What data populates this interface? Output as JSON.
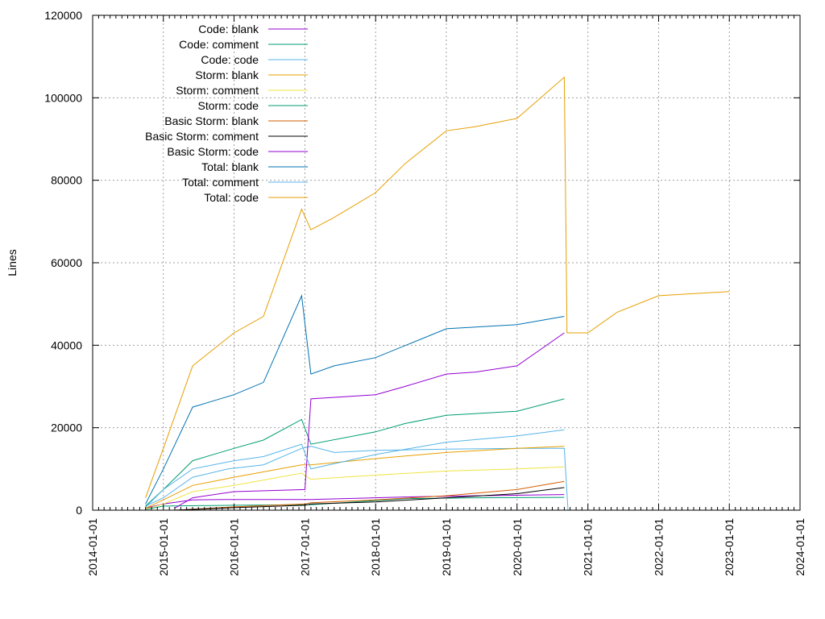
{
  "chart_data": {
    "type": "line",
    "xlabel": "",
    "ylabel": "Lines",
    "ylim": [
      0,
      120000
    ],
    "xlim": [
      "2014-01-01",
      "2024-01-01"
    ],
    "grid": true,
    "legend_position": "top-left",
    "y_ticks": [
      0,
      20000,
      40000,
      60000,
      80000,
      100000,
      120000
    ],
    "x_ticks": [
      "2014-01-01",
      "2015-01-01",
      "2016-01-01",
      "2017-01-01",
      "2018-01-01",
      "2019-01-01",
      "2020-01-01",
      "2021-01-01",
      "2022-01-01",
      "2023-01-01",
      "2024-01-01"
    ],
    "series": [
      {
        "name": "Code: blank",
        "color": "#9400d3",
        "points": [
          [
            "2014-10-01",
            500
          ],
          [
            "2015-01-01",
            1500
          ],
          [
            "2015-06-01",
            2500
          ],
          [
            "2015-12-01",
            2600
          ],
          [
            "2016-06-01",
            2600
          ],
          [
            "2017-01-01",
            2600
          ],
          [
            "2017-02-01",
            2600
          ],
          [
            "2018-06-01",
            3200
          ],
          [
            "2019-06-01",
            3500
          ],
          [
            "2020-09-01",
            3800
          ]
        ]
      },
      {
        "name": "Code: comment",
        "color": "#009e73",
        "points": [
          [
            "2014-10-01",
            200
          ],
          [
            "2015-01-01",
            1000
          ],
          [
            "2016-01-01",
            1200
          ],
          [
            "2017-01-01",
            1300
          ],
          [
            "2017-02-01",
            1300
          ],
          [
            "2018-06-01",
            2800
          ],
          [
            "2019-06-01",
            3000
          ],
          [
            "2020-09-01",
            3100
          ]
        ]
      },
      {
        "name": "Code: code",
        "color": "#56b4e9",
        "points": [
          [
            "2014-10-01",
            1000
          ],
          [
            "2015-01-01",
            3000
          ],
          [
            "2015-06-01",
            8000
          ],
          [
            "2015-12-01",
            10000
          ],
          [
            "2016-06-01",
            11000
          ],
          [
            "2016-12-15",
            15000
          ],
          [
            "2017-02-01",
            15500
          ],
          [
            "2017-06-01",
            14000
          ],
          [
            "2018-01-01",
            14500
          ],
          [
            "2019-01-01",
            14800
          ],
          [
            "2020-01-01",
            15000
          ],
          [
            "2020-09-01",
            15000
          ],
          [
            "2020-09-20",
            0
          ]
        ]
      },
      {
        "name": "Storm: blank",
        "color": "#e69f00",
        "points": [
          [
            "2014-10-01",
            500
          ],
          [
            "2015-01-01",
            2500
          ],
          [
            "2015-06-01",
            6000
          ],
          [
            "2016-01-01",
            8000
          ],
          [
            "2016-12-15",
            11000
          ],
          [
            "2017-02-01",
            11000
          ],
          [
            "2018-01-01",
            12500
          ],
          [
            "2019-01-01",
            14000
          ],
          [
            "2020-01-01",
            15000
          ],
          [
            "2020-09-01",
            15500
          ]
        ]
      },
      {
        "name": "Storm: comment",
        "color": "#f0e442",
        "points": [
          [
            "2014-10-01",
            300
          ],
          [
            "2015-01-01",
            1500
          ],
          [
            "2015-06-01",
            4500
          ],
          [
            "2016-01-01",
            6000
          ],
          [
            "2016-12-15",
            9000
          ],
          [
            "2017-02-01",
            7500
          ],
          [
            "2018-01-01",
            8500
          ],
          [
            "2019-01-01",
            9500
          ],
          [
            "2020-01-01",
            10000
          ],
          [
            "2020-09-01",
            10500
          ]
        ]
      },
      {
        "name": "Storm: code",
        "color": "#009e73",
        "points": [
          [
            "2014-10-01",
            1000
          ],
          [
            "2015-01-01",
            5000
          ],
          [
            "2015-06-01",
            12000
          ],
          [
            "2016-01-01",
            15000
          ],
          [
            "2016-06-01",
            17000
          ],
          [
            "2016-12-15",
            22000
          ],
          [
            "2017-02-01",
            16000
          ],
          [
            "2018-01-01",
            19000
          ],
          [
            "2018-06-01",
            21000
          ],
          [
            "2019-01-01",
            23000
          ],
          [
            "2020-01-01",
            24000
          ],
          [
            "2020-09-01",
            27000
          ]
        ]
      },
      {
        "name": "Basic Storm: blank",
        "color": "#d55e00",
        "points": [
          [
            "2015-03-01",
            0
          ],
          [
            "2016-01-01",
            800
          ],
          [
            "2017-01-01",
            1500
          ],
          [
            "2017-02-01",
            1800
          ],
          [
            "2018-01-01",
            2500
          ],
          [
            "2019-01-01",
            3500
          ],
          [
            "2020-01-01",
            5000
          ],
          [
            "2020-09-01",
            7000
          ]
        ]
      },
      {
        "name": "Basic Storm: comment",
        "color": "#000000",
        "points": [
          [
            "2015-03-01",
            0
          ],
          [
            "2016-01-01",
            600
          ],
          [
            "2017-01-01",
            1200
          ],
          [
            "2017-02-01",
            1500
          ],
          [
            "2018-01-01",
            2000
          ],
          [
            "2019-01-01",
            3000
          ],
          [
            "2020-01-01",
            4000
          ],
          [
            "2020-09-01",
            5500
          ]
        ]
      },
      {
        "name": "Basic Storm: code",
        "color": "#9400d3",
        "points": [
          [
            "2015-03-01",
            500
          ],
          [
            "2015-06-01",
            3000
          ],
          [
            "2016-01-01",
            4500
          ],
          [
            "2017-01-01",
            5000
          ],
          [
            "2017-02-01",
            27000
          ],
          [
            "2018-01-01",
            28000
          ],
          [
            "2018-06-01",
            30000
          ],
          [
            "2019-01-01",
            33000
          ],
          [
            "2019-06-01",
            33500
          ],
          [
            "2020-01-01",
            35000
          ],
          [
            "2020-09-01",
            43000
          ]
        ]
      },
      {
        "name": "Total: blank",
        "color": "#0072b2",
        "points": [
          [
            "2014-10-01",
            1500
          ],
          [
            "2015-01-01",
            10000
          ],
          [
            "2015-06-01",
            25000
          ],
          [
            "2016-01-01",
            28000
          ],
          [
            "2016-06-01",
            31000
          ],
          [
            "2016-12-15",
            52000
          ],
          [
            "2017-02-01",
            33000
          ],
          [
            "2017-06-01",
            35000
          ],
          [
            "2018-01-01",
            37000
          ],
          [
            "2019-01-01",
            44000
          ],
          [
            "2020-01-01",
            45000
          ],
          [
            "2020-09-01",
            47000
          ]
        ]
      },
      {
        "name": "Total: comment",
        "color": "#56b4e9",
        "points": [
          [
            "2014-10-01",
            700
          ],
          [
            "2015-01-01",
            5000
          ],
          [
            "2015-06-01",
            10000
          ],
          [
            "2016-01-01",
            12000
          ],
          [
            "2016-06-01",
            13000
          ],
          [
            "2016-12-15",
            16000
          ],
          [
            "2017-02-01",
            10000
          ],
          [
            "2018-01-01",
            13500
          ],
          [
            "2019-01-01",
            16500
          ],
          [
            "2020-01-01",
            18000
          ],
          [
            "2020-09-01",
            19500
          ]
        ]
      },
      {
        "name": "Total: code",
        "color": "#e69f00",
        "points": [
          [
            "2014-10-01",
            3000
          ],
          [
            "2015-01-01",
            15000
          ],
          [
            "2015-06-01",
            35000
          ],
          [
            "2016-01-01",
            43000
          ],
          [
            "2016-06-01",
            47000
          ],
          [
            "2016-12-15",
            73000
          ],
          [
            "2017-02-01",
            68000
          ],
          [
            "2017-06-01",
            71000
          ],
          [
            "2018-01-01",
            77000
          ],
          [
            "2018-06-01",
            84000
          ],
          [
            "2019-01-01",
            92000
          ],
          [
            "2019-06-01",
            93000
          ],
          [
            "2020-01-01",
            95000
          ],
          [
            "2020-09-01",
            105000
          ],
          [
            "2020-09-15",
            43000
          ],
          [
            "2021-01-01",
            43000
          ],
          [
            "2021-06-01",
            48000
          ],
          [
            "2022-01-01",
            52000
          ],
          [
            "2023-01-01",
            53000
          ]
        ]
      }
    ]
  }
}
